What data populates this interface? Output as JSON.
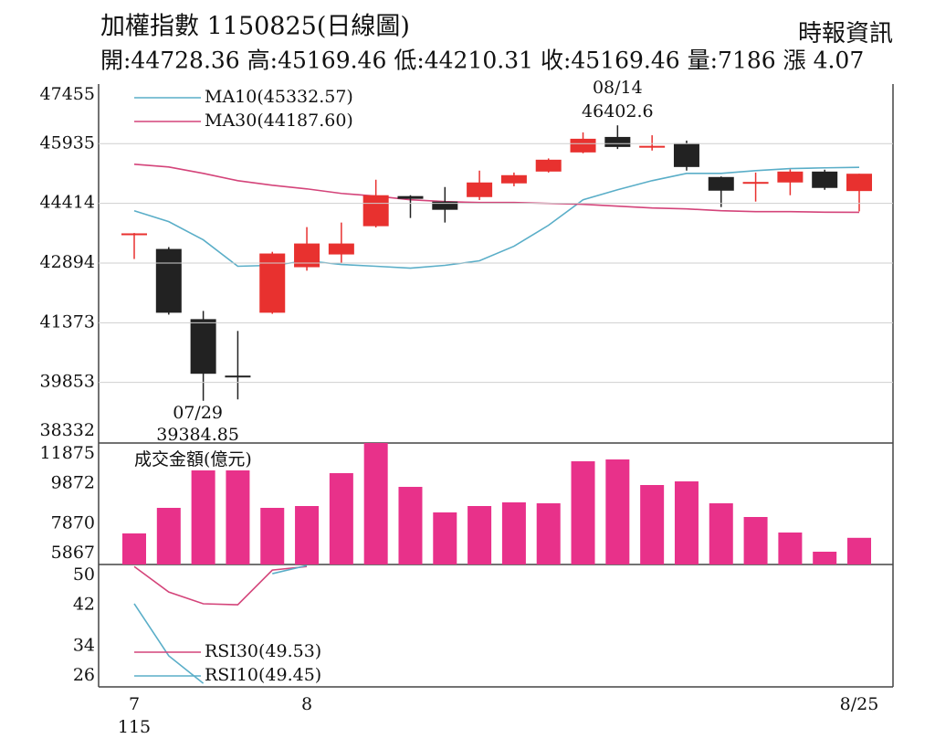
{
  "header": {
    "title": "加權指數 1150825(日線圖)",
    "source": "時報資訊",
    "summary": "開:44728.36 高:45169.46 低:44210.31 收:45169.46 量:7186 漲 4.07"
  },
  "chart_data": [
    {
      "type": "candlestick",
      "categories": [
        "7",
        null,
        null,
        null,
        null,
        "8",
        null,
        null,
        null,
        null,
        null,
        null,
        null,
        null,
        null,
        null,
        null,
        null,
        null,
        null,
        null,
        "8/25"
      ],
      "year_label": "115",
      "open": [
        43620,
        43253,
        41465,
        40026,
        41628,
        42788,
        43113,
        43833,
        44600,
        44460,
        44575,
        44924,
        45225,
        45713,
        46107,
        45850,
        45945,
        45086,
        44940,
        44947,
        45225,
        44728.36
      ],
      "high": [
        43660,
        43300,
        41674,
        41164,
        43180,
        43810,
        43926,
        45017,
        44622,
        44831,
        45249,
        45200,
        45560,
        46223,
        46402.6,
        46150,
        46014,
        45100,
        45200,
        45280,
        45272,
        45169.46
      ],
      "low": [
        42997,
        41580,
        39384.85,
        39420,
        41600,
        42700,
        42904,
        43800,
        44042,
        43926,
        44500,
        44850,
        45200,
        45690,
        45800,
        45760,
        45249,
        44320,
        44460,
        44622,
        44760,
        44210.31
      ],
      "close": [
        43650,
        41628,
        40073,
        39980,
        43137,
        43392,
        43392,
        44622,
        44530,
        44251,
        44947,
        45133,
        45527,
        46061,
        45852,
        45880,
        45341,
        44738,
        44960,
        45225,
        44808,
        45169.46
      ],
      "up_color": "#e8312f",
      "down_color": "#222222",
      "series": [
        {
          "name": "MA10(45332.57)",
          "color": "#5aaec8",
          "values": [
            44227,
            43949,
            43485,
            42812,
            42835,
            42951,
            42858,
            42812,
            42765,
            42835,
            42951,
            43322,
            43856,
            44506,
            44761,
            44993,
            45179,
            45179,
            45249,
            45300,
            45320,
            45332.57
          ]
        },
        {
          "name": "MA30(44187.60)",
          "color": "#d4447a",
          "values": [
            45411,
            45341,
            45179,
            44993,
            44877,
            44784,
            44668,
            44599,
            44506,
            44459,
            44436,
            44436,
            44413,
            44390,
            44343,
            44297,
            44274,
            44227,
            44204,
            44204,
            44190,
            44187.6
          ]
        }
      ],
      "ylim": [
        38332,
        47455
      ],
      "yticks": [
        38332,
        39853,
        41373,
        42894,
        44414,
        45935,
        47455
      ],
      "grid": true,
      "annotations": [
        {
          "text": "07/29",
          "value": 39384.85
        },
        {
          "text": "08/14",
          "value": 46402.6
        }
      ]
    },
    {
      "type": "bar",
      "title": "成交金額(億元)",
      "values": [
        7403,
        8668,
        10520,
        10520,
        8668,
        8758,
        10384,
        11875,
        9706,
        8442,
        8758,
        8939,
        8893,
        10971,
        11062,
        9797,
        9977,
        8893,
        8216,
        7448,
        6499,
        7186
      ],
      "color": "#e8318a",
      "ylim": [
        5867,
        11875
      ],
      "yticks": [
        5867,
        7870,
        9872,
        11875
      ],
      "grid": false
    },
    {
      "type": "line",
      "series": [
        {
          "name": "RSI30(49.53)",
          "color": "#d4447a",
          "values": [
            49.6,
            44.6,
            42.3,
            42.1,
            48.9,
            49.6,
            null,
            null,
            null,
            null,
            null,
            null,
            null,
            null,
            null,
            null,
            null,
            null,
            null,
            null,
            null,
            null
          ]
        },
        {
          "name": "RSI10(49.45)",
          "color": "#5aaec8",
          "values": [
            42.3,
            32.1,
            26.7,
            null,
            48.2,
            49.8,
            null,
            null,
            null,
            null,
            null,
            null,
            null,
            null,
            null,
            null,
            null,
            null,
            null,
            null,
            null,
            null
          ]
        }
      ],
      "ylim": [
        26,
        50
      ],
      "yticks": [
        26,
        34,
        42,
        50
      ],
      "grid": false
    }
  ]
}
